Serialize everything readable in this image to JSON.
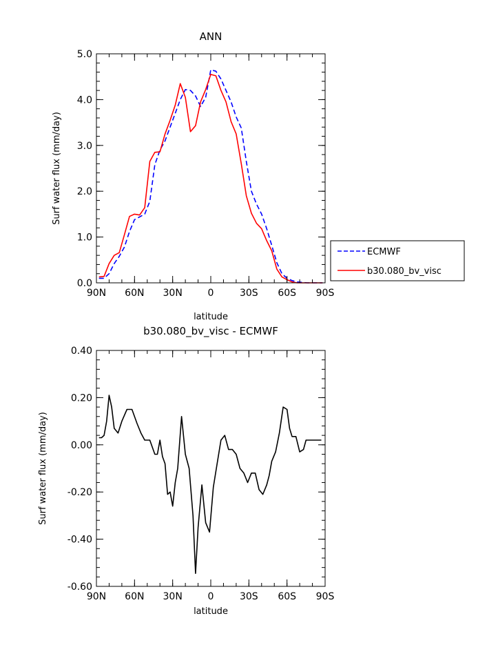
{
  "chart_data": [
    {
      "type": "line",
      "title": "ANN",
      "xlabel": "latitude",
      "ylabel": "Surf water flux (mm/day)",
      "ylim": [
        0,
        5
      ],
      "xlim": [
        -90,
        90
      ],
      "x_ticks": [
        {
          "v": -90,
          "label": "90N"
        },
        {
          "v": -60,
          "label": "60N"
        },
        {
          "v": -30,
          "label": "30N"
        },
        {
          "v": 0,
          "label": "0"
        },
        {
          "v": 30,
          "label": "30S"
        },
        {
          "v": 60,
          "label": "60S"
        },
        {
          "v": 90,
          "label": "90S"
        }
      ],
      "y_ticks": [
        {
          "v": 0,
          "label": "0.0"
        },
        {
          "v": 1,
          "label": "1.0"
        },
        {
          "v": 2,
          "label": "2.0"
        },
        {
          "v": 3,
          "label": "3.0"
        },
        {
          "v": 4,
          "label": "4.0"
        },
        {
          "v": 5,
          "label": "5.0"
        }
      ],
      "legend_position": "right",
      "series": [
        {
          "name": "ECMWF",
          "color": "#0000ff",
          "dash": "dashed",
          "x": [
            -88,
            -84,
            -80,
            -76,
            -72,
            -68,
            -64,
            -60,
            -56,
            -52,
            -48,
            -44,
            -40,
            -36,
            -32,
            -28,
            -24,
            -20,
            -16,
            -12,
            -8,
            -4,
            0,
            4,
            8,
            12,
            16,
            20,
            24,
            28,
            32,
            36,
            40,
            44,
            48,
            52,
            56,
            60,
            64,
            68,
            72,
            76,
            80,
            84,
            88
          ],
          "y": [
            0.1,
            0.1,
            0.2,
            0.42,
            0.58,
            0.78,
            1.12,
            1.38,
            1.44,
            1.5,
            1.78,
            2.58,
            2.9,
            3.1,
            3.4,
            3.7,
            4.0,
            4.22,
            4.2,
            4.08,
            3.85,
            4.05,
            4.65,
            4.62,
            4.45,
            4.2,
            3.95,
            3.62,
            3.38,
            2.65,
            2.0,
            1.72,
            1.5,
            1.18,
            0.82,
            0.44,
            0.2,
            0.1,
            0.05,
            0.02,
            0.01,
            0.0,
            0.0,
            0.0,
            0.0
          ]
        },
        {
          "name": "b30.080_bv_visc",
          "color": "#ff0000",
          "dash": "solid",
          "x": [
            -88,
            -84,
            -80,
            -76,
            -72,
            -68,
            -64,
            -60,
            -56,
            -52,
            -48,
            -44,
            -40,
            -36,
            -32,
            -28,
            -24,
            -20,
            -16,
            -12,
            -8,
            -4,
            0,
            4,
            8,
            12,
            16,
            20,
            24,
            28,
            32,
            36,
            40,
            44,
            48,
            52,
            56,
            60,
            64,
            68,
            72,
            76,
            80,
            84,
            88
          ],
          "y": [
            0.13,
            0.14,
            0.42,
            0.6,
            0.66,
            1.05,
            1.45,
            1.5,
            1.48,
            1.64,
            2.65,
            2.85,
            2.86,
            3.25,
            3.55,
            3.88,
            4.35,
            4.05,
            3.3,
            3.43,
            3.95,
            4.22,
            4.55,
            4.52,
            4.2,
            3.95,
            3.52,
            3.25,
            2.6,
            1.9,
            1.52,
            1.3,
            1.18,
            0.92,
            0.7,
            0.3,
            0.13,
            0.07,
            0.02,
            0.0,
            0.0,
            0.0,
            0.0,
            0.0,
            0.0
          ]
        }
      ]
    },
    {
      "type": "line",
      "title": "b30.080_bv_visc - ECMWF",
      "xlabel": "latitude",
      "ylabel": "Surf water flux (mm/day)",
      "ylim": [
        -0.6,
        0.4
      ],
      "xlim": [
        -90,
        90
      ],
      "x_ticks": [
        {
          "v": -90,
          "label": "90N"
        },
        {
          "v": -60,
          "label": "60N"
        },
        {
          "v": -30,
          "label": "30N"
        },
        {
          "v": 0,
          "label": "0"
        },
        {
          "v": 30,
          "label": "30S"
        },
        {
          "v": 60,
          "label": "60S"
        },
        {
          "v": 90,
          "label": "90S"
        }
      ],
      "y_ticks": [
        {
          "v": -0.6,
          "label": "-0.60"
        },
        {
          "v": -0.4,
          "label": "-0.40"
        },
        {
          "v": -0.2,
          "label": "-0.20"
        },
        {
          "v": 0.0,
          "label": "0.00"
        },
        {
          "v": 0.2,
          "label": "0.20"
        },
        {
          "v": 0.4,
          "label": "0.40"
        }
      ],
      "series": [
        {
          "color": "#000000",
          "dash": "solid",
          "x": [
            -88,
            -86,
            -84,
            -82,
            -80,
            -78,
            -76,
            -73,
            -70,
            -66,
            -62,
            -58,
            -55,
            -52,
            -48,
            -44,
            -42,
            -40,
            -38,
            -36,
            -34,
            -32,
            -30,
            -28,
            -26,
            -23,
            -20,
            -17,
            -14,
            -12,
            -10,
            -7,
            -4,
            -1,
            2,
            5,
            8,
            11,
            14,
            17,
            20,
            23,
            26,
            29,
            32,
            35,
            38,
            41,
            44,
            46,
            48,
            51,
            54,
            57,
            60,
            62,
            64,
            67,
            70,
            73,
            75,
            77,
            79,
            81,
            83,
            85,
            87
          ],
          "y": [
            0.03,
            0.03,
            0.04,
            0.1,
            0.21,
            0.16,
            0.07,
            0.05,
            0.1,
            0.15,
            0.15,
            0.09,
            0.05,
            0.02,
            0.02,
            -0.04,
            -0.04,
            0.02,
            -0.05,
            -0.08,
            -0.21,
            -0.2,
            -0.26,
            -0.16,
            -0.1,
            0.12,
            -0.04,
            -0.1,
            -0.3,
            -0.545,
            -0.35,
            -0.17,
            -0.33,
            -0.37,
            -0.18,
            -0.08,
            0.02,
            0.04,
            -0.02,
            -0.02,
            -0.04,
            -0.1,
            -0.12,
            -0.16,
            -0.12,
            -0.12,
            -0.19,
            -0.21,
            -0.17,
            -0.13,
            -0.07,
            -0.03,
            0.05,
            0.16,
            0.15,
            0.07,
            0.035,
            0.035,
            -0.03,
            -0.02,
            0.02,
            0.02,
            0.02,
            0.02,
            0.02,
            0.02,
            0.02
          ]
        }
      ]
    }
  ],
  "legend": {
    "items": [
      {
        "name": "ECMWF",
        "color": "#0000ff",
        "dash": "dashed"
      },
      {
        "name": "b30.080_bv_visc",
        "color": "#ff0000",
        "dash": "solid"
      }
    ]
  }
}
